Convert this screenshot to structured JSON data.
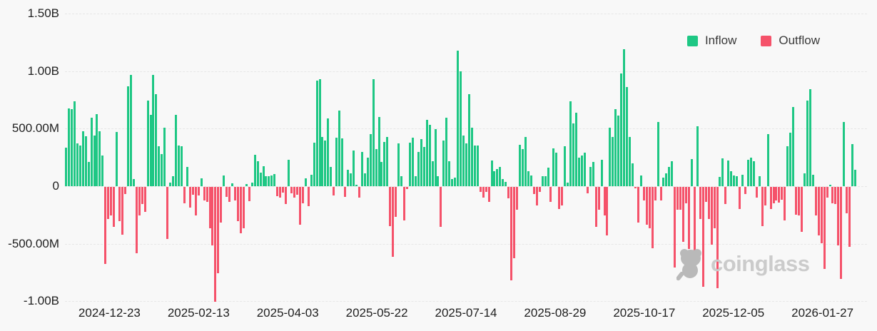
{
  "legend": {
    "items": [
      {
        "label": "Inflow",
        "key": "inflow"
      },
      {
        "label": "Outflow",
        "key": "outflow"
      }
    ],
    "position": "top-right"
  },
  "watermark": {
    "text": "coinglass",
    "icon": "coinglass-bear-logo"
  },
  "colors": {
    "inflow": "#1ec784",
    "outflow": "#f5526a",
    "background": "#f8f8f8",
    "gridline": "#e7e7e7",
    "axis_text": "#1f1f1f",
    "legend_text": "#3a3a3a",
    "watermark_text": "#cbcbcb",
    "watermark_logo": "#b9b9b9"
  },
  "chart_data": {
    "type": "bar",
    "title": "",
    "xlabel": "",
    "ylabel": "",
    "legend_position": "top-right",
    "grid": "horizontal-dashed",
    "series_note": "Single daily flow series in millions USD; positive values = Inflow (green), negative values = Outflow (red)",
    "y_axis": {
      "tick_labels": [
        "1.50B",
        "1.00B",
        "500.00M",
        "0",
        "-500.00M",
        "-1.00B"
      ],
      "tick_values_millions": [
        1500,
        1000,
        500,
        0,
        -500,
        -1000
      ],
      "range_millions": [
        -1100,
        1500
      ]
    },
    "x_axis": {
      "tick_labels": [
        "2024-12-23",
        "2025-02-13",
        "2025-04-03",
        "2025-05-22",
        "2025-07-14",
        "2025-08-29",
        "2025-10-17",
        "2025-12-05",
        "2026-01-27"
      ]
    },
    "values_millions": [
      335,
      675,
      670,
      735,
      375,
      355,
      475,
      435,
      210,
      595,
      440,
      625,
      480,
      265,
      -670,
      -280,
      -250,
      -345,
      470,
      -300,
      -415,
      -60,
      870,
      965,
      60,
      -575,
      -250,
      -150,
      -215,
      745,
      620,
      965,
      800,
      350,
      280,
      510,
      -450,
      30,
      90,
      620,
      355,
      345,
      -140,
      165,
      -180,
      -66,
      -250,
      -76,
      70,
      -120,
      -130,
      -360,
      -510,
      -1000,
      -750,
      -310,
      95,
      -85,
      -130,
      25,
      -120,
      -300,
      -405,
      -360,
      20,
      -125,
      30,
      270,
      215,
      120,
      175,
      90,
      85,
      95,
      105,
      -80,
      -95,
      -50,
      -150,
      230,
      -55,
      -90,
      -70,
      -330,
      -140,
      70,
      -170,
      100,
      380,
      915,
      930,
      430,
      395,
      590,
      165,
      -75,
      420,
      660,
      415,
      -85,
      140,
      110,
      310,
      10,
      -95,
      300,
      110,
      250,
      450,
      930,
      320,
      600,
      210,
      385,
      425,
      -340,
      -610,
      -260,
      375,
      85,
      -290,
      -20,
      380,
      420,
      85,
      295,
      410,
      340,
      575,
      535,
      220,
      495,
      90,
      -345,
      400,
      595,
      215,
      65,
      75,
      1180,
      1000,
      440,
      370,
      800,
      510,
      355,
      355,
      -45,
      -90,
      -45,
      -130,
      225,
      130,
      150,
      165,
      65,
      35,
      -100,
      -810,
      -620,
      -200,
      360,
      320,
      430,
      130,
      95,
      -60,
      -160,
      -40,
      90,
      85,
      160,
      -130,
      330,
      290,
      -190,
      -160,
      345,
      30,
      740,
      545,
      640,
      250,
      265,
      290,
      -55,
      170,
      210,
      -345,
      -200,
      230,
      -250,
      -420,
      510,
      425,
      670,
      615,
      980,
      1190,
      860,
      430,
      200,
      -15,
      -310,
      95,
      -120,
      -330,
      -360,
      -530,
      -120,
      560,
      -120,
      75,
      110,
      165,
      215,
      -700,
      -200,
      -195,
      -480,
      -140,
      -540,
      235,
      -560,
      520,
      -280,
      -870,
      -130,
      -280,
      -500,
      -360,
      -880,
      80,
      240,
      -150,
      225,
      130,
      95,
      85,
      -190,
      100,
      -60,
      230,
      250,
      215,
      -90,
      90,
      -340,
      -160,
      455,
      -190,
      -140,
      -120,
      -135,
      -110,
      -290,
      350,
      465,
      690,
      -240,
      -250,
      -390,
      110,
      745,
      845,
      100,
      -250,
      -420,
      -490,
      -710,
      -90,
      15,
      -140,
      -150,
      -505,
      -800,
      560,
      -230,
      -520,
      365,
      140
    ]
  }
}
